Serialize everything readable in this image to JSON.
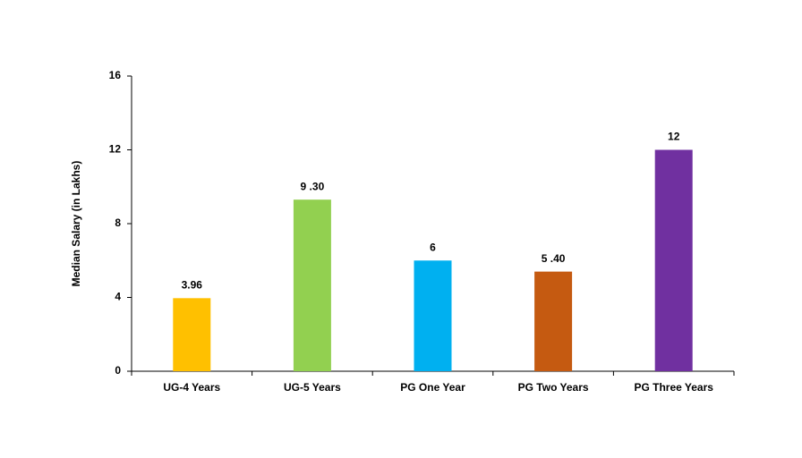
{
  "chart_data": {
    "type": "bar",
    "y_label": "Median Salary (in Lakhs)",
    "categories": [
      "UG-4 Years",
      "UG-5 Years",
      "PG One Year",
      "PG Two Years",
      "PG Three Years"
    ],
    "values": [
      3.96,
      9.3,
      6,
      5.4,
      12
    ],
    "value_labels": [
      "3.96",
      "9 .30",
      "6",
      "5 .40",
      "12"
    ],
    "colors": [
      "#FFC000",
      "#92D050",
      "#00B0F0",
      "#C55A11",
      "#7030A0"
    ],
    "ylim": [
      0,
      16
    ],
    "yticks": [
      0,
      4,
      8,
      12,
      16
    ],
    "grid": false
  }
}
